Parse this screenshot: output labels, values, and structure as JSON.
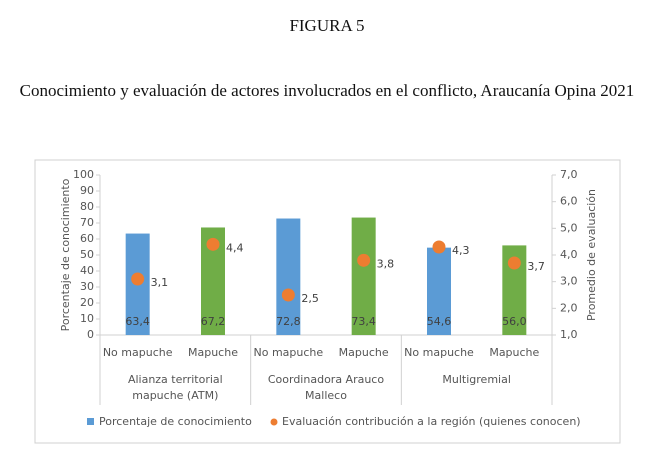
{
  "header": {
    "figure": "FIGURA 5"
  },
  "chart_data": {
    "type": "bar",
    "title": "Conocimiento y evaluación de actores involucrados en el conflicto, Araucanía Opina 2021",
    "categories": [
      "No mapuche",
      "Mapuche",
      "No mapuche",
      "Mapuche",
      "No mapuche",
      "Mapuche"
    ],
    "groups": [
      "Alianza territorial mapuche (ATM)",
      "Coordinadora Arauco Malleco",
      "Multigremial"
    ],
    "series": [
      {
        "name": "Porcentaje de conocimiento",
        "type": "bar",
        "color": "#5b9bd5",
        "colors": [
          "#5b9bd5",
          "#70ad47",
          "#5b9bd5",
          "#70ad47",
          "#5b9bd5",
          "#70ad47"
        ],
        "values": [
          63.4,
          67.2,
          72.8,
          73.4,
          54.6,
          56.0
        ],
        "value_labels": [
          "63,4",
          "67,2",
          "72,8",
          "73,4",
          "54,6",
          "56,0"
        ]
      },
      {
        "name": "Evaluación contribución a la región (quienes conocen)",
        "type": "dot",
        "axis": "y2",
        "color": "#ed7d31",
        "values": [
          3.1,
          4.4,
          2.5,
          3.8,
          4.3,
          3.7
        ],
        "value_labels": [
          "3,1",
          "4,4",
          "2,5",
          "3,8",
          "4,3",
          "3,7"
        ]
      }
    ],
    "ylabel": "Porcentaje de conocimiento",
    "y2label": "Promedio de evaluación",
    "ylim": [
      0,
      100
    ],
    "yticks": [
      0,
      10,
      20,
      30,
      40,
      50,
      60,
      70,
      80,
      90,
      100
    ],
    "y2lim": [
      1,
      7
    ],
    "y2ticks": [
      {
        "value": 1,
        "label": "1,0"
      },
      {
        "value": 2,
        "label": "2,0"
      },
      {
        "value": 3,
        "label": "3,0"
      },
      {
        "value": 4,
        "label": "4,0"
      },
      {
        "value": 5,
        "label": "5,0"
      },
      {
        "value": 6,
        "label": "6,0"
      },
      {
        "value": 7,
        "label": "7,0"
      }
    ],
    "legend": "bottom"
  }
}
